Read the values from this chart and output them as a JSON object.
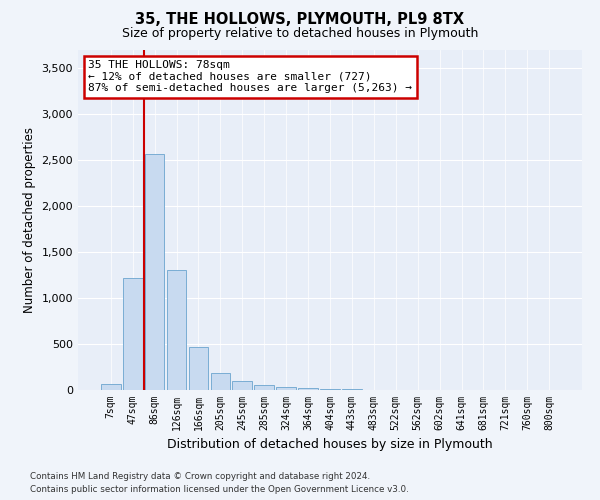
{
  "title1": "35, THE HOLLOWS, PLYMOUTH, PL9 8TX",
  "title2": "Size of property relative to detached houses in Plymouth",
  "xlabel": "Distribution of detached houses by size in Plymouth",
  "ylabel": "Number of detached properties",
  "bin_labels": [
    "7sqm",
    "47sqm",
    "86sqm",
    "126sqm",
    "166sqm",
    "205sqm",
    "245sqm",
    "285sqm",
    "324sqm",
    "364sqm",
    "404sqm",
    "443sqm",
    "483sqm",
    "522sqm",
    "562sqm",
    "602sqm",
    "641sqm",
    "681sqm",
    "721sqm",
    "760sqm",
    "800sqm"
  ],
  "bar_values": [
    60,
    1220,
    2570,
    1310,
    465,
    190,
    95,
    55,
    35,
    20,
    12,
    8,
    5,
    4,
    3,
    3,
    2,
    2,
    2,
    2,
    2
  ],
  "bar_color": "#c8daf0",
  "bar_edgecolor": "#7aadd4",
  "vline_color": "#cc0000",
  "annotation_text": "35 THE HOLLOWS: 78sqm\n← 12% of detached houses are smaller (727)\n87% of semi-detached houses are larger (5,263) →",
  "annotation_box_color": "#cc0000",
  "annotation_bg": "#ffffff",
  "ylim": [
    0,
    3700
  ],
  "yticks": [
    0,
    500,
    1000,
    1500,
    2000,
    2500,
    3000,
    3500
  ],
  "footer1": "Contains HM Land Registry data © Crown copyright and database right 2024.",
  "footer2": "Contains public sector information licensed under the Open Government Licence v3.0.",
  "bg_color": "#f0f4fa",
  "plot_bg": "#e8eef8"
}
